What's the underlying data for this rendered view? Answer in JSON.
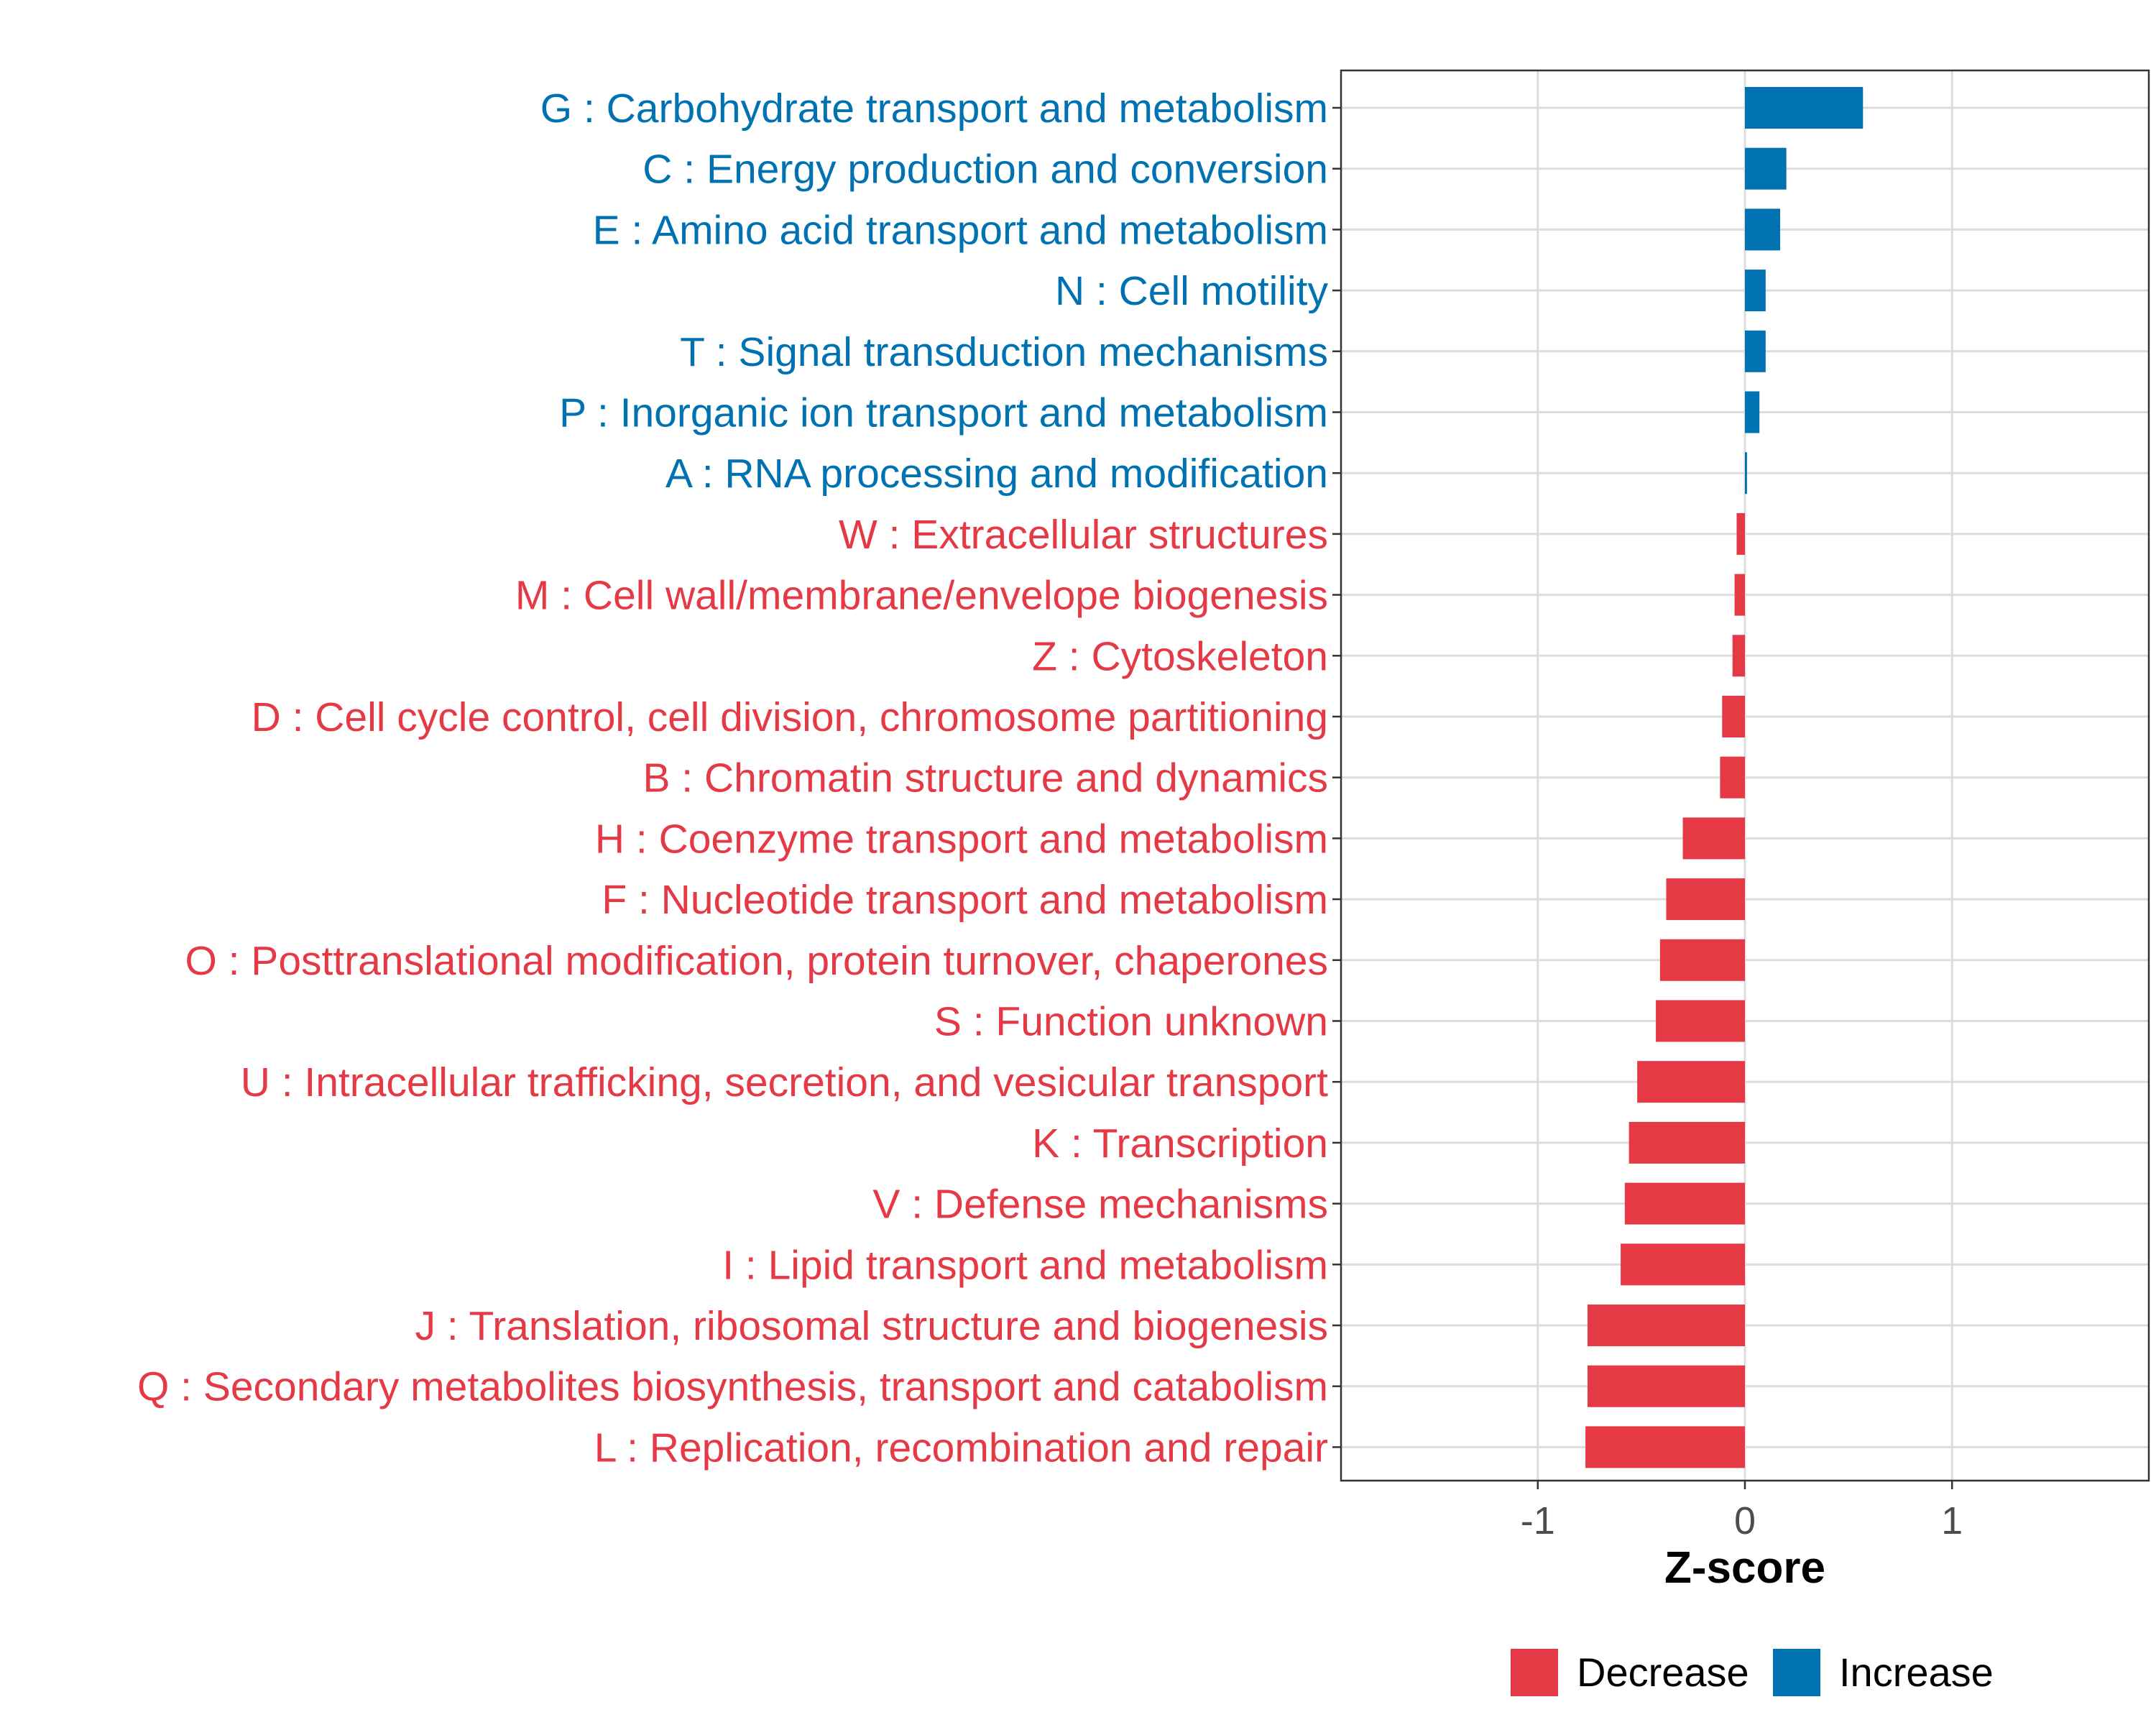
{
  "chart_data": {
    "type": "bar",
    "orientation": "horizontal",
    "title": "",
    "xlabel": "Z-score",
    "ylabel": "",
    "xlim": [
      -1.95,
      1.95
    ],
    "xticks": [
      -1,
      0,
      1
    ],
    "xtick_labels": [
      "-1",
      "0",
      "1"
    ],
    "grid": true,
    "legend_position": "bottom",
    "colors": {
      "Increase": "#0072B2",
      "Decrease": "#E63946"
    },
    "legend": [
      {
        "label": "Decrease",
        "color": "#E63946"
      },
      {
        "label": "Increase",
        "color": "#0072B2"
      }
    ],
    "categories": [
      "G : Carbohydrate transport and metabolism",
      "C : Energy production and conversion",
      "E : Amino acid transport and metabolism",
      "N : Cell motility",
      "T : Signal transduction mechanisms",
      "P : Inorganic ion transport and metabolism",
      "A : RNA processing and modification",
      "W : Extracellular structures",
      "M : Cell wall/membrane/envelope biogenesis",
      "Z : Cytoskeleton",
      "D : Cell cycle control, cell division, chromosome partitioning",
      "B : Chromatin structure and dynamics",
      "H : Coenzyme transport and metabolism",
      "F : Nucleotide transport and metabolism",
      "O : Posttranslational modification, protein turnover, chaperones",
      "S : Function unknown",
      "U : Intracellular trafficking, secretion, and vesicular transport",
      "K : Transcription",
      "V : Defense mechanisms",
      "I : Lipid transport and metabolism",
      "J : Translation, ribosomal structure and biogenesis",
      "Q : Secondary metabolites biosynthesis, transport and catabolism",
      "L : Replication, recombination and repair"
    ],
    "values": [
      0.57,
      0.2,
      0.17,
      0.1,
      0.1,
      0.07,
      0.01,
      -0.04,
      -0.05,
      -0.06,
      -0.11,
      -0.12,
      -0.3,
      -0.38,
      -0.41,
      -0.43,
      -0.52,
      -0.56,
      -0.58,
      -0.6,
      -0.76,
      -0.76,
      -0.77
    ],
    "groups": [
      "Increase",
      "Increase",
      "Increase",
      "Increase",
      "Increase",
      "Increase",
      "Increase",
      "Decrease",
      "Decrease",
      "Decrease",
      "Decrease",
      "Decrease",
      "Decrease",
      "Decrease",
      "Decrease",
      "Decrease",
      "Decrease",
      "Decrease",
      "Decrease",
      "Decrease",
      "Decrease",
      "Decrease",
      "Decrease"
    ]
  }
}
